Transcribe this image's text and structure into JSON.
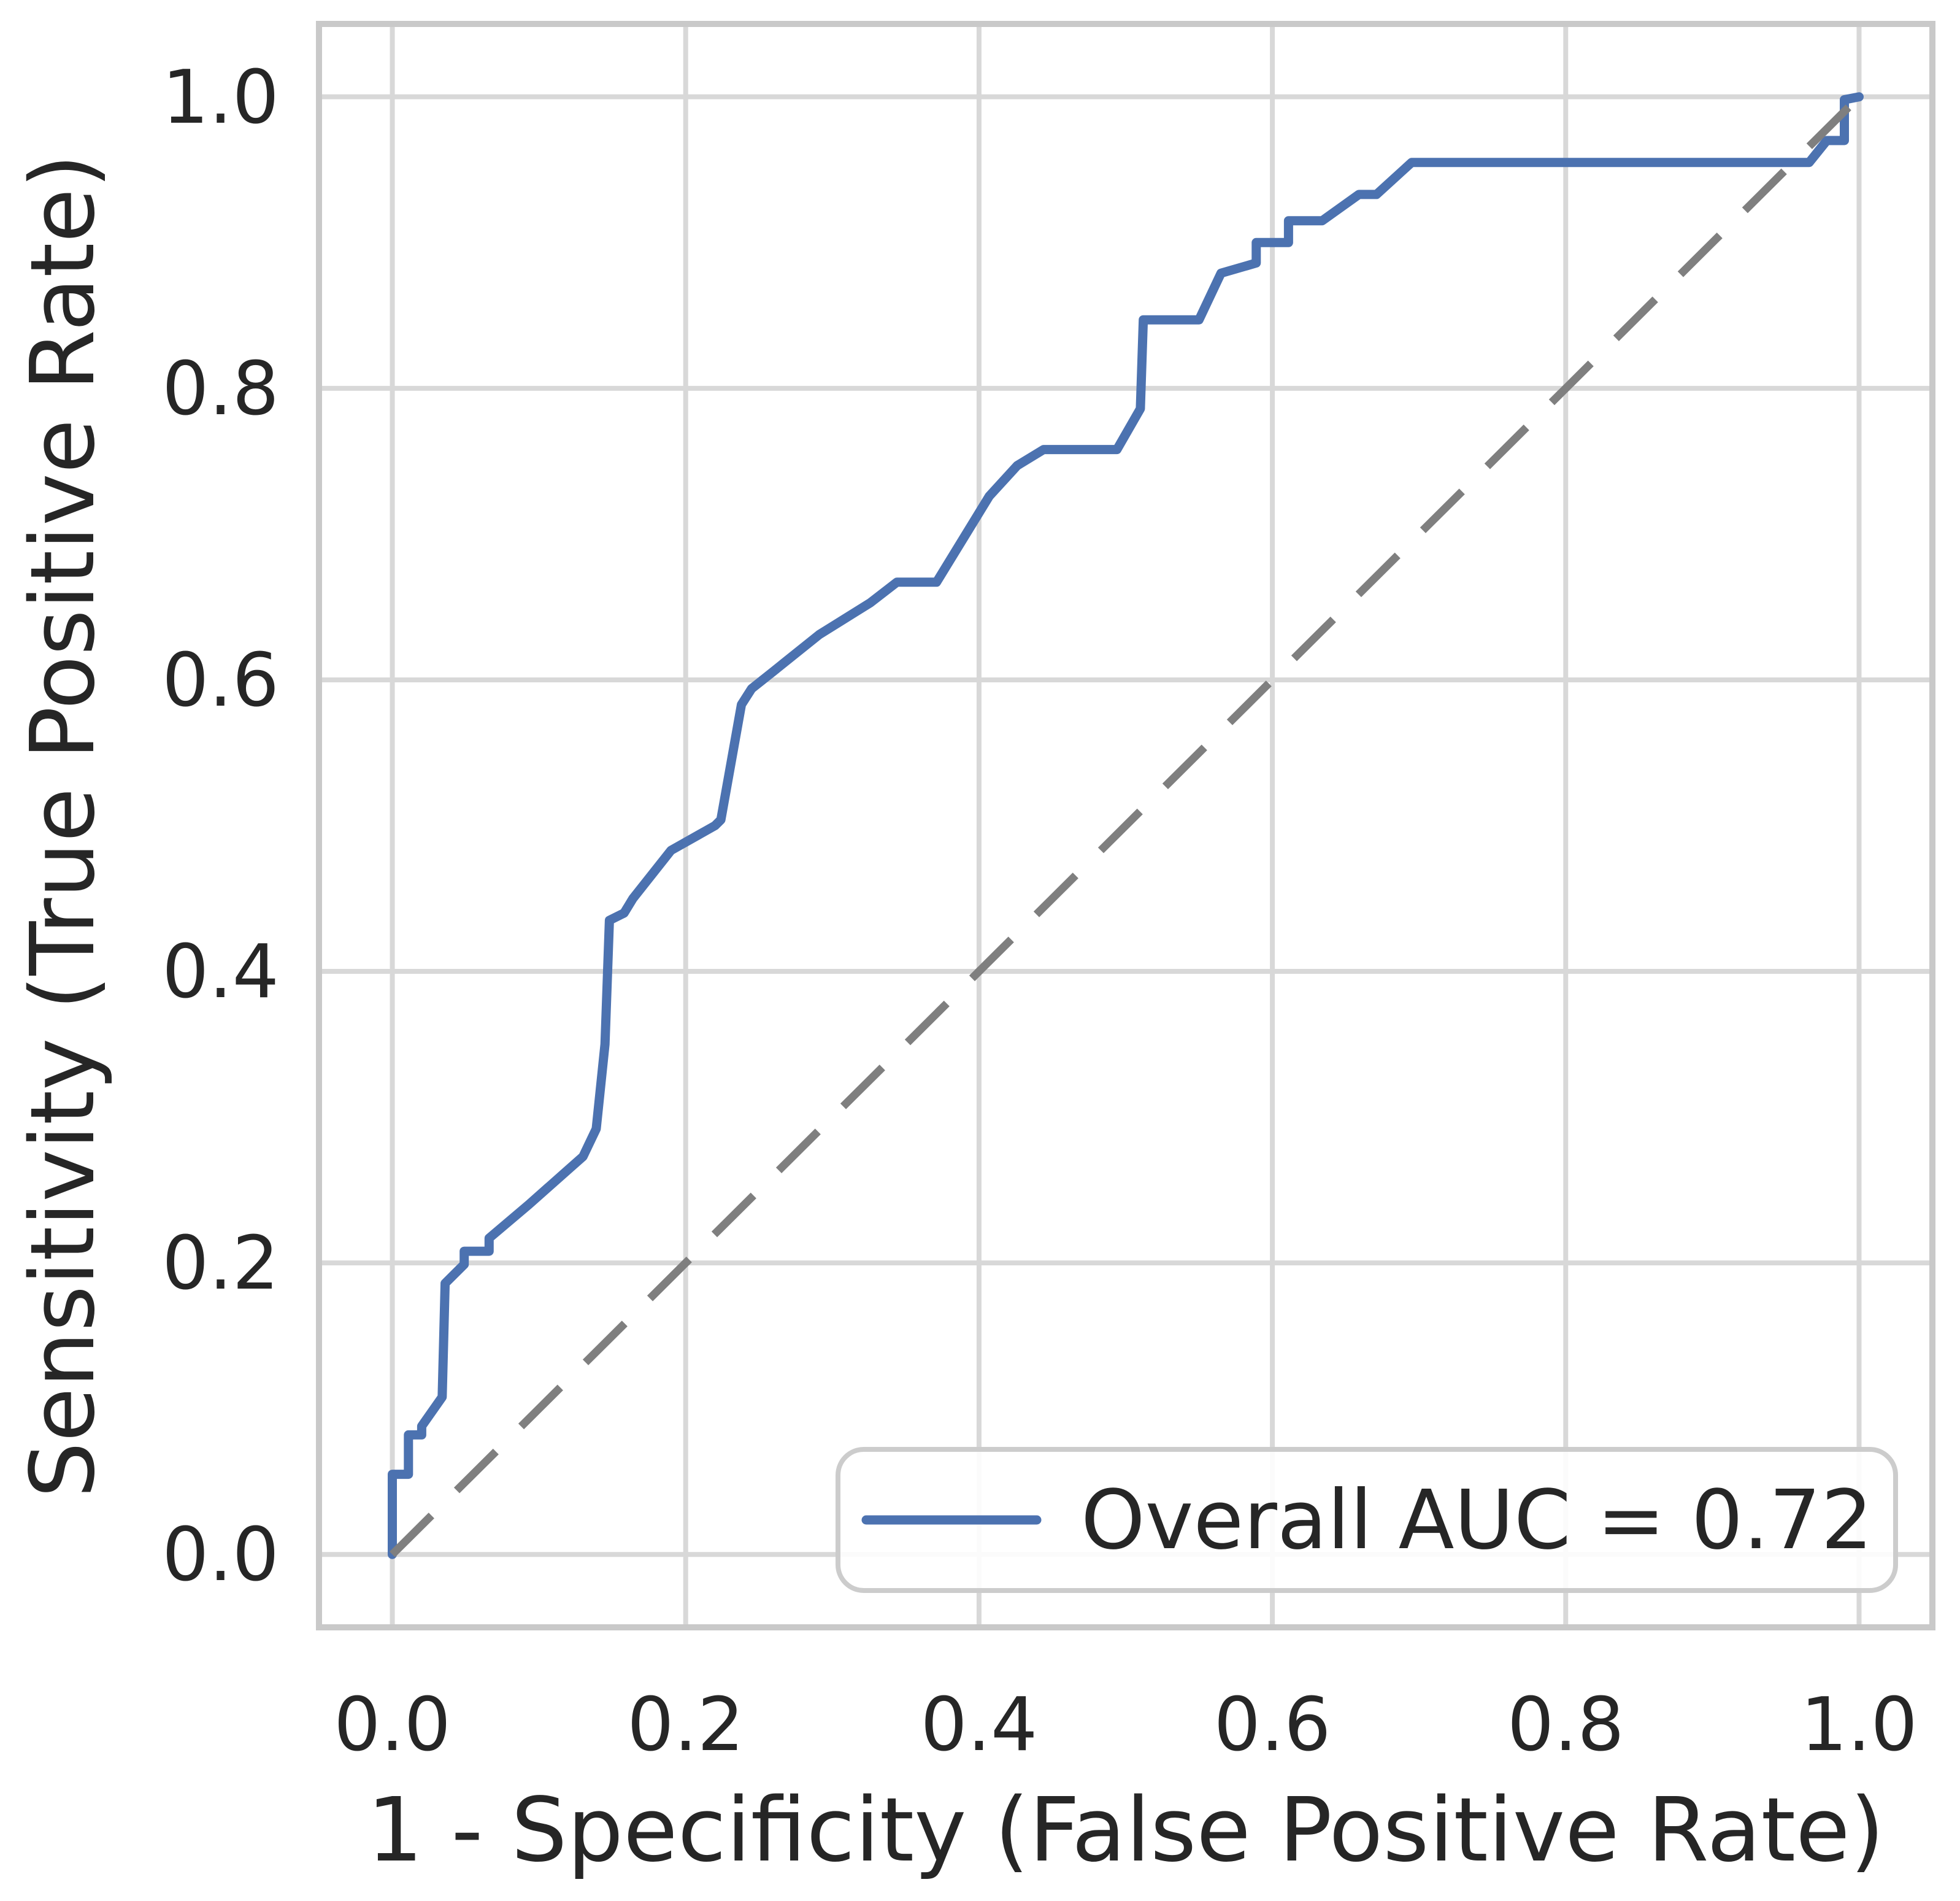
{
  "figure": {
    "background_color": "#ffffff",
    "grid_color": "#d8d8d8",
    "spine_color": "#c9c9c9",
    "text_color": "#262626"
  },
  "legend": {
    "label": "Overall AUC = 0.72",
    "line_color": "#4c72b0",
    "box_fill": "#ffffff",
    "box_border_color": "#cccccc",
    "position": "lower right"
  },
  "chart_data": {
    "type": "line",
    "subtype": "roc-curve",
    "title": "",
    "xlabel": "1 - Specificity (False Positive Rate)",
    "ylabel": "Sensitivity (True Positive Rate)",
    "xlim": [
      -0.05,
      1.05
    ],
    "ylim": [
      -0.05,
      1.05
    ],
    "grid": true,
    "legend_position": "lower right",
    "auc": 0.72,
    "x_ticks": [
      {
        "value": 0.0,
        "label": "0.0"
      },
      {
        "value": 0.2,
        "label": "0.2"
      },
      {
        "value": 0.4,
        "label": "0.4"
      },
      {
        "value": 0.6,
        "label": "0.6"
      },
      {
        "value": 0.8,
        "label": "0.8"
      },
      {
        "value": 1.0,
        "label": "1.0"
      }
    ],
    "y_ticks": [
      {
        "value": 0.0,
        "label": "0.0"
      },
      {
        "value": 0.2,
        "label": "0.2"
      },
      {
        "value": 0.4,
        "label": "0.4"
      },
      {
        "value": 0.6,
        "label": "0.6"
      },
      {
        "value": 0.8,
        "label": "0.8"
      },
      {
        "value": 1.0,
        "label": "1.0"
      }
    ],
    "series": [
      {
        "name": "Overall AUC = 0.72",
        "role": "roc-curve",
        "color": "#4c72b0",
        "line_width": 15,
        "line_style": "solid",
        "points": [
          [
            0.0,
            0.0
          ],
          [
            0.0,
            0.055
          ],
          [
            0.011,
            0.055
          ],
          [
            0.011,
            0.082
          ],
          [
            0.02,
            0.082
          ],
          [
            0.02,
            0.088
          ],
          [
            0.034,
            0.108
          ],
          [
            0.036,
            0.186
          ],
          [
            0.049,
            0.199
          ],
          [
            0.049,
            0.208
          ],
          [
            0.066,
            0.208
          ],
          [
            0.066,
            0.217
          ],
          [
            0.093,
            0.24
          ],
          [
            0.13,
            0.273
          ],
          [
            0.139,
            0.292
          ],
          [
            0.145,
            0.35
          ],
          [
            0.148,
            0.435
          ],
          [
            0.158,
            0.44
          ],
          [
            0.164,
            0.45
          ],
          [
            0.19,
            0.483
          ],
          [
            0.22,
            0.5
          ],
          [
            0.224,
            0.504
          ],
          [
            0.238,
            0.583
          ],
          [
            0.245,
            0.594
          ],
          [
            0.26,
            0.606
          ],
          [
            0.291,
            0.631
          ],
          [
            0.326,
            0.653
          ],
          [
            0.344,
            0.667
          ],
          [
            0.371,
            0.667
          ],
          [
            0.407,
            0.726
          ],
          [
            0.426,
            0.747
          ],
          [
            0.444,
            0.758
          ],
          [
            0.494,
            0.758
          ],
          [
            0.502,
            0.772
          ],
          [
            0.51,
            0.786
          ],
          [
            0.512,
            0.847
          ],
          [
            0.55,
            0.847
          ],
          [
            0.565,
            0.879
          ],
          [
            0.589,
            0.886
          ],
          [
            0.589,
            0.9
          ],
          [
            0.611,
            0.9
          ],
          [
            0.611,
            0.915
          ],
          [
            0.634,
            0.915
          ],
          [
            0.659,
            0.933
          ],
          [
            0.671,
            0.933
          ],
          [
            0.695,
            0.955
          ],
          [
            0.966,
            0.955
          ],
          [
            0.978,
            0.97
          ],
          [
            0.99,
            0.97
          ],
          [
            0.99,
            0.998
          ],
          [
            1.0,
            1.0
          ]
        ]
      },
      {
        "name": "chance-diagonal",
        "role": "reference-line",
        "color": "#7f7f7f",
        "line_width": 13,
        "line_style": "dashed",
        "points": [
          [
            0.0,
            0.0
          ],
          [
            1.0,
            1.0
          ]
        ]
      }
    ]
  }
}
